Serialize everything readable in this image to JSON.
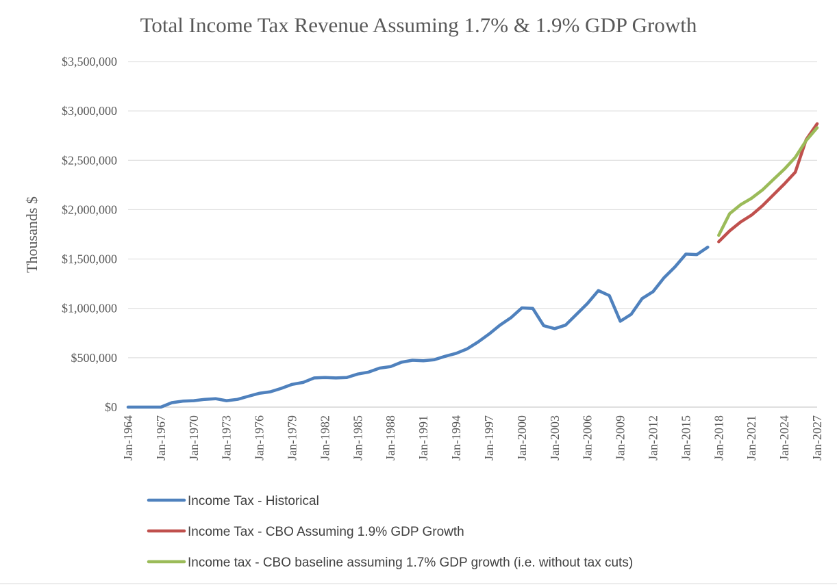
{
  "chart_data": {
    "type": "line",
    "title": "Total Income Tax Revenue Assuming 1.7% & 1.9% GDP Growth",
    "xlabel": "",
    "ylabel": "Thousands $",
    "ylim": [
      0,
      3500000
    ],
    "y_ticks": [
      0,
      500000,
      1000000,
      1500000,
      2000000,
      2500000,
      3000000,
      3500000
    ],
    "y_tick_labels": [
      "$0",
      "$500,000",
      "$1,000,000",
      "$1,500,000",
      "$2,000,000",
      "$2,500,000",
      "$3,000,000",
      "$3,500,000"
    ],
    "x_range": [
      1964,
      2027
    ],
    "x_ticks": [
      1964,
      1967,
      1970,
      1973,
      1976,
      1979,
      1982,
      1985,
      1988,
      1991,
      1994,
      1997,
      2000,
      2003,
      2006,
      2009,
      2012,
      2015,
      2018,
      2021,
      2024,
      2027
    ],
    "x_tick_labels": [
      "Jan-1964",
      "Jan-1967",
      "Jan-1970",
      "Jan-1973",
      "Jan-1976",
      "Jan-1979",
      "Jan-1982",
      "Jan-1985",
      "Jan-1988",
      "Jan-1991",
      "Jan-1994",
      "Jan-1997",
      "Jan-2000",
      "Jan-2003",
      "Jan-2006",
      "Jan-2009",
      "Jan-2012",
      "Jan-2015",
      "Jan-2018",
      "Jan-2021",
      "Jan-2024",
      "Jan-2027"
    ],
    "grid": true,
    "legend_position": "bottom",
    "series": [
      {
        "name": "Income Tax - Historical",
        "color": "#4f81bd",
        "x": [
          1964,
          1965,
          1966,
          1967,
          1968,
          1969,
          1970,
          1971,
          1972,
          1973,
          1974,
          1975,
          1976,
          1977,
          1978,
          1979,
          1980,
          1981,
          1982,
          1983,
          1984,
          1985,
          1986,
          1987,
          1988,
          1989,
          1990,
          1991,
          1992,
          1993,
          1994,
          1995,
          1996,
          1997,
          1998,
          1999,
          2000,
          2001,
          2002,
          2003,
          2004,
          2005,
          2006,
          2007,
          2008,
          2009,
          2010,
          2011,
          2012,
          2013,
          2014,
          2015,
          2016,
          2017
        ],
        "values": [
          0,
          0,
          0,
          0,
          45000,
          60000,
          65000,
          78000,
          85000,
          65000,
          78000,
          110000,
          140000,
          155000,
          190000,
          230000,
          250000,
          295000,
          300000,
          295000,
          300000,
          335000,
          355000,
          395000,
          410000,
          455000,
          475000,
          470000,
          480000,
          515000,
          545000,
          590000,
          660000,
          740000,
          830000,
          905000,
          1005000,
          1000000,
          825000,
          795000,
          830000,
          940000,
          1050000,
          1180000,
          1130000,
          870000,
          940000,
          1100000,
          1170000,
          1310000,
          1420000,
          1550000,
          1545000,
          1620000
        ]
      },
      {
        "name": "Income Tax - CBO Assuming 1.9% GDP Growth",
        "color": "#c0504d",
        "x": [
          2018,
          2019,
          2020,
          2021,
          2022,
          2023,
          2024,
          2025,
          2026,
          2027
        ],
        "values": [
          1675000,
          1785000,
          1875000,
          1945000,
          2040000,
          2150000,
          2260000,
          2380000,
          2710000,
          2870000
        ]
      },
      {
        "name": "Income tax - CBO baseline assuming 1.7% GDP growth (i.e. without tax cuts)",
        "color": "#9bbb59",
        "x": [
          2018,
          2019,
          2020,
          2021,
          2022,
          2023,
          2024,
          2025,
          2026,
          2027
        ],
        "values": [
          1740000,
          1960000,
          2050000,
          2115000,
          2200000,
          2305000,
          2410000,
          2530000,
          2700000,
          2830000
        ]
      }
    ]
  }
}
